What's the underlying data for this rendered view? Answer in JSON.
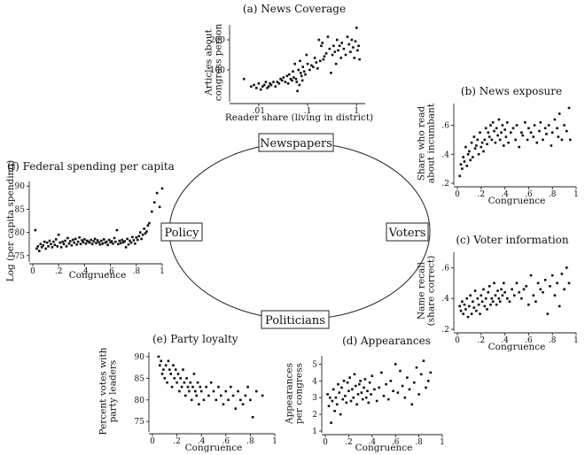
{
  "diagram": {
    "nodes": {
      "top": "Newspapers",
      "right": "Voters",
      "bottom": "Politicians",
      "left": "Policy"
    }
  },
  "chart_data": [
    {
      "id": "a",
      "type": "scatter",
      "title": "(a) News Coverage",
      "xlabel": "Reader share (living in district)",
      "ylabel": [
        "Articles about",
        "congress person"
      ],
      "x_scale": "log",
      "xlim": [
        0.003,
        1.5
      ],
      "ylim": [
        0,
        250
      ],
      "xticks": [
        0.01,
        0.1,
        1
      ],
      "xtick_labels": [
        ".01",
        ".1",
        "1"
      ],
      "yticks": [
        100,
        200
      ],
      "ytick_labels": [
        "100",
        "200"
      ],
      "x": [
        0.005,
        0.007,
        0.008,
        0.009,
        0.01,
        0.011,
        0.012,
        0.013,
        0.014,
        0.015,
        0.016,
        0.017,
        0.018,
        0.02,
        0.022,
        0.024,
        0.026,
        0.028,
        0.03,
        0.032,
        0.035,
        0.038,
        0.04,
        0.042,
        0.045,
        0.048,
        0.05,
        0.052,
        0.055,
        0.058,
        0.06,
        0.062,
        0.065,
        0.068,
        0.07,
        0.072,
        0.075,
        0.078,
        0.08,
        0.085,
        0.09,
        0.095,
        0.1,
        0.11,
        0.12,
        0.13,
        0.14,
        0.15,
        0.16,
        0.17,
        0.18,
        0.19,
        0.2,
        0.21,
        0.22,
        0.24,
        0.26,
        0.28,
        0.3,
        0.32,
        0.34,
        0.36,
        0.38,
        0.4,
        0.42,
        0.45,
        0.48,
        0.5,
        0.55,
        0.6,
        0.65,
        0.7,
        0.75,
        0.8,
        0.85,
        0.9,
        0.95,
        1.0,
        1.05,
        1.1,
        1.15
      ],
      "y": [
        70,
        45,
        50,
        40,
        55,
        35,
        45,
        50,
        60,
        40,
        45,
        55,
        50,
        60,
        45,
        60,
        55,
        70,
        65,
        75,
        60,
        80,
        55,
        85,
        70,
        65,
        95,
        75,
        120,
        70,
        60,
        30,
        100,
        50,
        130,
        90,
        80,
        65,
        110,
        95,
        85,
        150,
        120,
        100,
        115,
        110,
        140,
        125,
        105,
        200,
        130,
        180,
        190,
        135,
        145,
        155,
        210,
        170,
        90,
        150,
        180,
        160,
        120,
        200,
        165,
        180,
        140,
        190,
        170,
        150,
        210,
        185,
        160,
        200,
        175,
        140,
        195,
        240,
        165,
        180,
        135
      ]
    },
    {
      "id": "b",
      "type": "scatter",
      "title": "(b) News exposure",
      "xlabel": "Congruence",
      "ylabel": [
        "Share who read",
        "about incumbant"
      ],
      "xlim": [
        0,
        1
      ],
      "ylim": [
        0.2,
        0.75
      ],
      "xticks": [
        0,
        0.2,
        0.4,
        0.6,
        0.8,
        1
      ],
      "xtick_labels": [
        "0",
        ".2",
        ".4",
        ".6",
        ".8",
        "1"
      ],
      "yticks": [
        0.2,
        0.4,
        0.6
      ],
      "ytick_labels": [
        ".2",
        ".4",
        ".6"
      ],
      "x": [
        0.02,
        0.03,
        0.04,
        0.05,
        0.06,
        0.07,
        0.08,
        0.09,
        0.1,
        0.11,
        0.12,
        0.13,
        0.14,
        0.15,
        0.16,
        0.17,
        0.18,
        0.19,
        0.2,
        0.21,
        0.22,
        0.23,
        0.24,
        0.25,
        0.26,
        0.27,
        0.28,
        0.29,
        0.3,
        0.31,
        0.32,
        0.33,
        0.34,
        0.35,
        0.36,
        0.37,
        0.38,
        0.39,
        0.4,
        0.41,
        0.42,
        0.43,
        0.45,
        0.47,
        0.49,
        0.5,
        0.52,
        0.54,
        0.55,
        0.57,
        0.59,
        0.6,
        0.62,
        0.64,
        0.65,
        0.67,
        0.69,
        0.7,
        0.72,
        0.74,
        0.75,
        0.77,
        0.79,
        0.8,
        0.82,
        0.84,
        0.85,
        0.86,
        0.88,
        0.9,
        0.92,
        0.94,
        0.95
      ],
      "y": [
        0.25,
        0.33,
        0.3,
        0.38,
        0.35,
        0.45,
        0.32,
        0.4,
        0.42,
        0.36,
        0.48,
        0.38,
        0.52,
        0.44,
        0.46,
        0.5,
        0.4,
        0.55,
        0.45,
        0.48,
        0.42,
        0.5,
        0.58,
        0.47,
        0.55,
        0.52,
        0.6,
        0.5,
        0.62,
        0.56,
        0.48,
        0.58,
        0.53,
        0.64,
        0.5,
        0.55,
        0.6,
        0.46,
        0.57,
        0.52,
        0.62,
        0.48,
        0.55,
        0.58,
        0.5,
        0.6,
        0.45,
        0.55,
        0.53,
        0.62,
        0.5,
        0.58,
        0.55,
        0.52,
        0.6,
        0.48,
        0.56,
        0.62,
        0.5,
        0.58,
        0.54,
        0.6,
        0.46,
        0.55,
        0.64,
        0.58,
        0.52,
        0.68,
        0.5,
        0.6,
        0.56,
        0.72,
        0.5
      ]
    },
    {
      "id": "c",
      "type": "scatter",
      "title": "(c) Voter information",
      "xlabel": "Congruence",
      "ylabel": [
        "Name recall",
        "(share correct)"
      ],
      "xlim": [
        0,
        1
      ],
      "ylim": [
        0.2,
        0.7
      ],
      "xticks": [
        0,
        0.2,
        0.4,
        0.6,
        0.8,
        1
      ],
      "xtick_labels": [
        "0",
        ".2",
        ".4",
        ".6",
        ".8",
        "1"
      ],
      "yticks": [
        0.2,
        0.4,
        0.6
      ],
      "ytick_labels": [
        ".2",
        ".4",
        ".6"
      ],
      "x": [
        0.02,
        0.03,
        0.04,
        0.05,
        0.06,
        0.07,
        0.08,
        0.09,
        0.1,
        0.11,
        0.12,
        0.13,
        0.14,
        0.15,
        0.16,
        0.17,
        0.18,
        0.19,
        0.2,
        0.21,
        0.22,
        0.23,
        0.24,
        0.25,
        0.26,
        0.27,
        0.28,
        0.29,
        0.3,
        0.31,
        0.32,
        0.33,
        0.34,
        0.35,
        0.36,
        0.37,
        0.38,
        0.39,
        0.4,
        0.42,
        0.44,
        0.46,
        0.48,
        0.5,
        0.52,
        0.54,
        0.56,
        0.58,
        0.6,
        0.62,
        0.64,
        0.66,
        0.68,
        0.7,
        0.72,
        0.74,
        0.76,
        0.78,
        0.8,
        0.82,
        0.84,
        0.86,
        0.88,
        0.9,
        0.92,
        0.94
      ],
      "y": [
        0.35,
        0.32,
        0.38,
        0.3,
        0.36,
        0.33,
        0.4,
        0.28,
        0.35,
        0.42,
        0.3,
        0.38,
        0.34,
        0.45,
        0.32,
        0.4,
        0.36,
        0.3,
        0.42,
        0.38,
        0.46,
        0.35,
        0.4,
        0.33,
        0.44,
        0.48,
        0.36,
        0.4,
        0.38,
        0.5,
        0.42,
        0.36,
        0.45,
        0.4,
        0.38,
        0.46,
        0.42,
        0.5,
        0.44,
        0.4,
        0.38,
        0.46,
        0.42,
        0.5,
        0.44,
        0.4,
        0.46,
        0.48,
        0.36,
        0.55,
        0.42,
        0.38,
        0.5,
        0.46,
        0.44,
        0.52,
        0.3,
        0.48,
        0.55,
        0.42,
        0.5,
        0.35,
        0.56,
        0.46,
        0.6,
        0.5
      ]
    },
    {
      "id": "d",
      "type": "scatter",
      "title": "(d) Appearances",
      "xlabel": "Congruence",
      "ylabel": [
        "Appearances",
        "per congress"
      ],
      "xlim": [
        0,
        1
      ],
      "ylim": [
        1,
        5.5
      ],
      "xticks": [
        0,
        0.2,
        0.4,
        0.6,
        0.8,
        1
      ],
      "xtick_labels": [
        "0",
        ".2",
        ".4",
        ".6",
        ".8",
        "1"
      ],
      "yticks": [
        1,
        2,
        3,
        4,
        5
      ],
      "ytick_labels": [
        "1",
        "2",
        "3",
        "4",
        "5"
      ],
      "x": [
        0.02,
        0.03,
        0.04,
        0.05,
        0.06,
        0.07,
        0.08,
        0.09,
        0.1,
        0.11,
        0.12,
        0.13,
        0.14,
        0.15,
        0.16,
        0.17,
        0.18,
        0.19,
        0.2,
        0.21,
        0.22,
        0.23,
        0.24,
        0.25,
        0.26,
        0.27,
        0.28,
        0.29,
        0.3,
        0.31,
        0.32,
        0.33,
        0.34,
        0.35,
        0.36,
        0.37,
        0.38,
        0.39,
        0.4,
        0.42,
        0.44,
        0.46,
        0.48,
        0.5,
        0.52,
        0.54,
        0.56,
        0.58,
        0.6,
        0.62,
        0.64,
        0.66,
        0.68,
        0.7,
        0.72,
        0.74,
        0.76,
        0.78,
        0.8,
        0.82,
        0.84,
        0.86,
        0.88,
        0.9
      ],
      "y": [
        3.2,
        2.5,
        3.0,
        1.5,
        2.8,
        3.5,
        2.2,
        3.0,
        2.6,
        3.8,
        3.3,
        2.0,
        3.6,
        2.9,
        4.0,
        3.1,
        2.7,
        3.9,
        3.4,
        4.2,
        2.8,
        3.5,
        3.0,
        4.4,
        3.7,
        2.6,
        3.2,
        3.8,
        4.0,
        3.3,
        2.9,
        3.6,
        4.1,
        3.0,
        3.4,
        2.7,
        3.9,
        3.2,
        4.3,
        3.5,
        2.8,
        3.6,
        4.5,
        3.1,
        3.8,
        2.9,
        4.0,
        3.4,
        5.0,
        3.3,
        4.6,
        3.7,
        3.0,
        4.2,
        3.5,
        2.6,
        3.9,
        4.8,
        3.2,
        4.4,
        5.2,
        3.6,
        4.0,
        4.5
      ]
    },
    {
      "id": "e",
      "type": "scatter",
      "title": "(e) Party loyalty",
      "xlabel": "Congruence",
      "ylabel": [
        "Percent votes with",
        "party leaders"
      ],
      "xlim": [
        0,
        1
      ],
      "ylim": [
        73,
        91
      ],
      "xticks": [
        0,
        0.2,
        0.4,
        0.6,
        0.8,
        1
      ],
      "xtick_labels": [
        "0",
        ".2",
        ".4",
        ".6",
        ".8",
        "1"
      ],
      "yticks": [
        75,
        80,
        85,
        90
      ],
      "ytick_labels": [
        "75",
        "80",
        "85",
        "90"
      ],
      "x": [
        0.05,
        0.06,
        0.07,
        0.08,
        0.09,
        0.1,
        0.11,
        0.12,
        0.13,
        0.14,
        0.15,
        0.16,
        0.17,
        0.18,
        0.19,
        0.2,
        0.21,
        0.22,
        0.23,
        0.24,
        0.25,
        0.26,
        0.27,
        0.28,
        0.29,
        0.3,
        0.31,
        0.32,
        0.33,
        0.34,
        0.35,
        0.36,
        0.37,
        0.38,
        0.39,
        0.4,
        0.42,
        0.44,
        0.46,
        0.48,
        0.5,
        0.52,
        0.54,
        0.56,
        0.58,
        0.6,
        0.62,
        0.64,
        0.66,
        0.68,
        0.7,
        0.72,
        0.74,
        0.76,
        0.78,
        0.8,
        0.82,
        0.85,
        0.9
      ],
      "y": [
        90,
        88,
        89,
        86,
        87,
        85,
        88,
        84,
        89,
        87,
        86,
        83,
        88,
        85,
        87,
        84,
        86,
        82,
        85,
        83,
        87,
        84,
        81,
        85,
        83,
        82,
        84,
        80,
        83,
        86,
        82,
        81,
        84,
        79,
        83,
        82,
        80,
        83,
        81,
        84,
        82,
        80,
        83,
        81,
        79,
        82,
        80,
        83,
        81,
        78,
        82,
        80,
        79,
        81,
        83,
        80,
        76,
        82,
        81
      ]
    },
    {
      "id": "f",
      "type": "scatter",
      "title": "(f) Federal spending per capita",
      "xlabel": "Congruence",
      "ylabel": [
        "Log (per capita spending)"
      ],
      "xlim": [
        0,
        1
      ],
      "ylim": [
        74,
        91
      ],
      "xticks": [
        0,
        0.2,
        0.4,
        0.6,
        0.8,
        1
      ],
      "xtick_labels": [
        "0",
        ".2",
        ".4",
        ".6",
        ".8",
        "1"
      ],
      "yticks": [
        75,
        80,
        85,
        90
      ],
      "ytick_labels": [
        "75",
        "80",
        "85",
        "90"
      ],
      "x": [
        0.02,
        0.03,
        0.04,
        0.05,
        0.06,
        0.07,
        0.08,
        0.09,
        0.1,
        0.11,
        0.12,
        0.13,
        0.14,
        0.15,
        0.16,
        0.17,
        0.18,
        0.19,
        0.2,
        0.21,
        0.22,
        0.23,
        0.24,
        0.25,
        0.26,
        0.27,
        0.28,
        0.29,
        0.3,
        0.31,
        0.32,
        0.33,
        0.34,
        0.35,
        0.36,
        0.37,
        0.38,
        0.39,
        0.4,
        0.41,
        0.42,
        0.43,
        0.44,
        0.45,
        0.46,
        0.47,
        0.48,
        0.49,
        0.5,
        0.51,
        0.52,
        0.53,
        0.54,
        0.55,
        0.56,
        0.57,
        0.58,
        0.59,
        0.6,
        0.61,
        0.62,
        0.63,
        0.64,
        0.65,
        0.66,
        0.67,
        0.68,
        0.69,
        0.7,
        0.71,
        0.72,
        0.73,
        0.74,
        0.75,
        0.76,
        0.77,
        0.78,
        0.79,
        0.8,
        0.81,
        0.82,
        0.83,
        0.84,
        0.85,
        0.86,
        0.87,
        0.88,
        0.89,
        0.9,
        0.92,
        0.94,
        0.96,
        0.98,
        1.0
      ],
      "y": [
        80.5,
        76.5,
        77,
        76,
        77.5,
        76.8,
        77.2,
        78,
        76.5,
        77.8,
        77,
        78.2,
        77.5,
        76.8,
        78,
        77.3,
        78.5,
        77,
        79.5,
        77.8,
        76.8,
        78,
        77.5,
        78.2,
        77,
        78.8,
        77.6,
        78.1,
        77.2,
        78.4,
        77.8,
        78.6,
        77.4,
        78,
        78.9,
        77.5,
        78.3,
        77.9,
        78.5,
        77.6,
        78.2,
        78,
        77.8,
        78.4,
        77.5,
        78.1,
        78.6,
        77.7,
        78.3,
        77.9,
        77.4,
        78.2,
        77.6,
        78.5,
        77.8,
        78,
        77.3,
        78.4,
        77.9,
        78.1,
        77.6,
        78.8,
        78,
        80.5,
        77.5,
        78.2,
        77.7,
        78.4,
        77.9,
        78.1,
        76.8,
        78.6,
        77.4,
        78.2,
        77.8,
        79,
        78.3,
        77.6,
        78.9,
        78.4,
        79.2,
        80,
        78.6,
        79.5,
        80.8,
        79.8,
        80.2,
        81.5,
        82,
        84.5,
        86.5,
        88.5,
        85.5,
        89.5
      ]
    }
  ]
}
